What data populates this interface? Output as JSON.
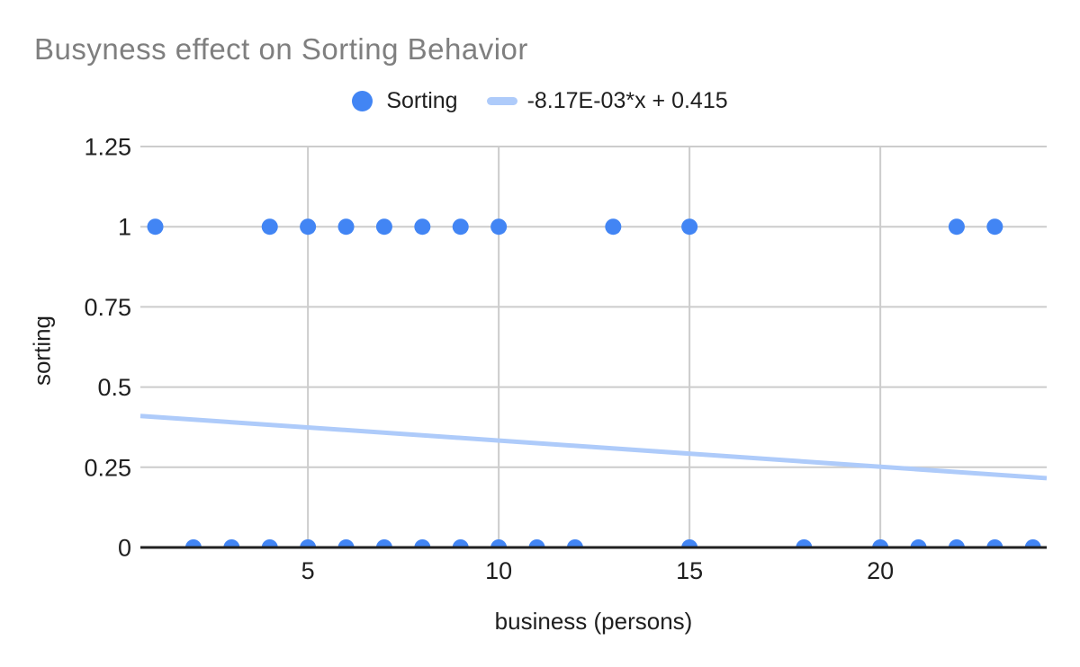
{
  "chart_data": {
    "type": "scatter",
    "title": "Busyness effect on Sorting Behavior",
    "xlabel": "business (persons)",
    "ylabel": "sorting",
    "xlim": [
      0.61,
      24.36
    ],
    "ylim": [
      0,
      1.25
    ],
    "x_ticks": [
      5,
      10,
      15,
      20
    ],
    "y_ticks": [
      0,
      0.25,
      0.5,
      0.75,
      1,
      1.25
    ],
    "grid": true,
    "legend_position": "top-center",
    "series": [
      {
        "name": "Sorting",
        "type": "scatter",
        "marker": "circle",
        "color": "#4285f4",
        "points": [
          [
            1,
            1
          ],
          [
            2,
            0
          ],
          [
            3,
            0
          ],
          [
            4,
            0
          ],
          [
            4,
            1
          ],
          [
            5,
            0
          ],
          [
            5,
            1
          ],
          [
            6,
            0
          ],
          [
            6,
            1
          ],
          [
            7,
            0
          ],
          [
            7,
            1
          ],
          [
            8,
            0
          ],
          [
            8,
            1
          ],
          [
            9,
            0
          ],
          [
            9,
            1
          ],
          [
            10,
            0
          ],
          [
            10,
            1
          ],
          [
            11,
            0
          ],
          [
            12,
            0
          ],
          [
            13,
            1
          ],
          [
            15,
            0
          ],
          [
            15,
            1
          ],
          [
            18,
            0
          ],
          [
            20,
            0
          ],
          [
            21,
            0
          ],
          [
            22,
            0
          ],
          [
            22,
            1
          ],
          [
            23,
            0
          ],
          [
            23,
            1
          ],
          [
            24,
            0
          ]
        ]
      },
      {
        "name": "-8.17E-03*x + 0.415",
        "type": "trendline",
        "color": "#aecbfa",
        "slope": -0.00817,
        "intercept": 0.415
      }
    ],
    "colors": {
      "title": "#7f7f7f",
      "text": "#1f1f1f",
      "gridline": "#cccccc",
      "axis_line": "#212121",
      "background": "#ffffff"
    }
  }
}
